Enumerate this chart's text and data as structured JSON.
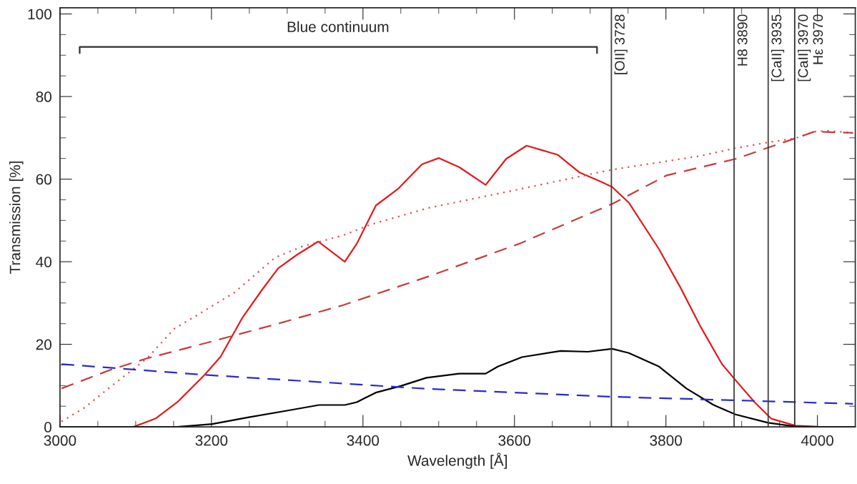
{
  "chart_data": {
    "type": "line",
    "xlabel": "Wavelength [Å]",
    "ylabel": "Transmission [%]",
    "xlim": [
      3000,
      4050
    ],
    "ylim": [
      0,
      101.5
    ],
    "xticks": [
      3000,
      {
        "value": 3050,
        "label": null
      },
      {
        "value": 3100,
        "label": null
      },
      {
        "value": 3150,
        "label": null
      },
      3200,
      {
        "value": 3250,
        "label": null
      },
      {
        "value": 3300,
        "label": null
      },
      {
        "value": 3350,
        "label": null
      },
      3400,
      {
        "value": 3450,
        "label": null
      },
      {
        "value": 3500,
        "label": null
      },
      {
        "value": 3550,
        "label": null
      },
      3600,
      {
        "value": 3650,
        "label": null
      },
      {
        "value": 3700,
        "label": null
      },
      {
        "value": 3750,
        "label": null
      },
      3800,
      {
        "value": 3850,
        "label": null
      },
      {
        "value": 3900,
        "label": null
      },
      {
        "value": 3950,
        "label": null
      },
      4000
    ],
    "yticks": [
      0,
      {
        "value": 5,
        "label": null
      },
      {
        "value": 10,
        "label": null
      },
      {
        "value": 15,
        "label": null
      },
      20,
      {
        "value": 25,
        "label": null
      },
      {
        "value": 30,
        "label": null
      },
      {
        "value": 35,
        "label": null
      },
      40,
      {
        "value": 45,
        "label": null
      },
      {
        "value": 50,
        "label": null
      },
      {
        "value": 55,
        "label": null
      },
      60,
      {
        "value": 65,
        "label": null
      },
      {
        "value": 70,
        "label": null
      },
      {
        "value": 75,
        "label": null
      },
      80,
      {
        "value": 85,
        "label": null
      },
      {
        "value": 90,
        "label": null
      },
      {
        "value": 95,
        "label": null
      },
      100
    ],
    "grid": false,
    "legend": false,
    "series": [
      {
        "color": "#e41a1c",
        "line_style": "solid",
        "x": [
          3000,
          3097,
          3126,
          3155,
          3191,
          3212,
          3241,
          3266,
          3288,
          3313,
          3341,
          3376,
          3392,
          3417,
          3446,
          3478,
          3500,
          3527,
          3562,
          3589,
          3616,
          3657,
          3686,
          3715,
          3729,
          3751,
          3791,
          3819,
          3845,
          3874,
          3892,
          3917,
          3939,
          3971,
          4003,
          4050
        ],
        "values": [
          0,
          0,
          2,
          6,
          12.6,
          17,
          26.5,
          33,
          38.4,
          41.7,
          44.9,
          40,
          44.4,
          53.6,
          57.6,
          63.6,
          65.1,
          62.9,
          58.6,
          64.9,
          68.1,
          65.9,
          61.6,
          59.3,
          58.1,
          54.3,
          43,
          33.8,
          24.5,
          15.2,
          11.3,
          6,
          2,
          0.3,
          0,
          0
        ]
      },
      {
        "color": "#000000",
        "line_style": "solid",
        "x": [
          3000,
          3155,
          3201,
          3248,
          3302,
          3342,
          3376,
          3392,
          3417,
          3450,
          3484,
          3527,
          3562,
          3578,
          3610,
          3661,
          3697,
          3729,
          3751,
          3791,
          3827,
          3863,
          3892,
          3935,
          3971,
          4003,
          4050
        ],
        "values": [
          0,
          0,
          0.7,
          2.3,
          4,
          5.3,
          5.3,
          6,
          8.3,
          9.9,
          11.9,
          12.9,
          12.9,
          14.6,
          16.9,
          18.4,
          18.2,
          18.9,
          17.9,
          14.6,
          9.3,
          5.3,
          3,
          1,
          0.1,
          0,
          0
        ]
      },
      {
        "color": "#e05050",
        "line_style": "dotted",
        "x": [
          3002,
          3032,
          3068,
          3115,
          3151,
          3176,
          3230,
          3284,
          3320,
          3374,
          3410,
          3486,
          3592,
          3729,
          3845,
          3892,
          3935,
          3971,
          3996,
          4014,
          4047
        ],
        "values": [
          1.3,
          4.6,
          9.9,
          16.6,
          23.8,
          26.5,
          32.5,
          41,
          43.7,
          46.4,
          49,
          53,
          57,
          62.3,
          65.6,
          67.5,
          68.9,
          69.9,
          71.5,
          71.7,
          71.2
        ]
      },
      {
        "color": "#c83c3c",
        "line_style": "dashed",
        "x": [
          3002,
          3068,
          3115,
          3176,
          3284,
          3374,
          3486,
          3607,
          3729,
          3801,
          3892,
          3971,
          3996,
          4047
        ],
        "values": [
          9.3,
          13.9,
          16.6,
          19.5,
          24.8,
          29.5,
          36.4,
          44.4,
          54,
          60.9,
          64.9,
          69.9,
          71.5,
          71.2
        ]
      },
      {
        "color": "#2a2ad0",
        "line_style": "dashed",
        "x": [
          3002,
          3191,
          3478,
          3729,
          4047
        ],
        "values": [
          15.2,
          12.6,
          9.3,
          7.3,
          5.6
        ]
      },
      {
        "color": "#303030",
        "line_style": "solid",
        "x": [
          3026,
          3026,
          3709,
          3709
        ],
        "values": [
          90.5,
          92,
          92,
          90.5
        ]
      }
    ],
    "annotations": [
      {
        "text": "Blue continuum",
        "x": 3367,
        "y": 92
      }
    ],
    "ref_lines": [
      {
        "axis": "x",
        "value": 3728,
        "label": "[OII] 3728",
        "color": "#404040"
      },
      {
        "axis": "x",
        "value": 3890,
        "label": "H8 3890",
        "color": "#404040"
      },
      {
        "axis": "x",
        "value": 3935,
        "label": "[CaII] 3935",
        "color": "#404040"
      },
      {
        "axis": "x",
        "value": 3970,
        "label": "[CaII] 3970\nHε 3970",
        "color": "#303030"
      }
    ]
  }
}
